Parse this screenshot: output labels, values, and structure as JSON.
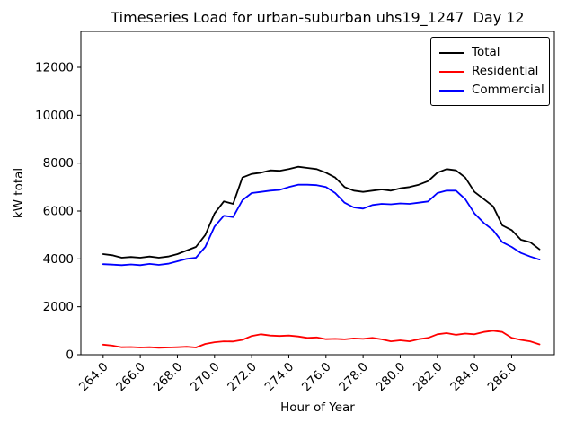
{
  "figure": {
    "title": "Timeseries Load for urban-suburban uhs19_1247  Day 12",
    "xlabel": "Hour of Year",
    "ylabel": "kW total"
  },
  "chart_data": {
    "type": "line",
    "title": "Timeseries Load for urban-suburban uhs19_1247  Day 12",
    "xlabel": "Hour of Year",
    "ylabel": "kW total",
    "xlim": [
      262.8,
      288.3
    ],
    "ylim": [
      0,
      13500
    ],
    "grid": false,
    "legend_position": "upper right",
    "x_ticks": [
      264,
      266,
      268,
      270,
      272,
      274,
      276,
      278,
      280,
      282,
      284,
      286
    ],
    "x_tick_labels": [
      "264.0",
      "266.0",
      "268.0",
      "270.0",
      "272.0",
      "274.0",
      "276.0",
      "278.0",
      "280.0",
      "282.0",
      "284.0",
      "286.0"
    ],
    "y_ticks": [
      0,
      2000,
      4000,
      6000,
      8000,
      10000,
      12000
    ],
    "y_tick_labels": [
      "0",
      "2000",
      "4000",
      "6000",
      "8000",
      "10000",
      "12000"
    ],
    "x": [
      264.0,
      264.5,
      265.0,
      265.5,
      266.0,
      266.5,
      267.0,
      267.5,
      268.0,
      268.5,
      269.0,
      269.5,
      270.0,
      270.5,
      271.0,
      271.5,
      272.0,
      272.5,
      273.0,
      273.5,
      274.0,
      274.5,
      275.0,
      275.5,
      276.0,
      276.5,
      277.0,
      277.5,
      278.0,
      278.5,
      279.0,
      279.5,
      280.0,
      280.5,
      281.0,
      281.5,
      282.0,
      282.5,
      283.0,
      283.5,
      284.0,
      284.5,
      285.0,
      285.5,
      286.0,
      286.5,
      287.0,
      287.5
    ],
    "series": [
      {
        "name": "Total",
        "color": "#000000",
        "values": [
          4200,
          4150,
          4050,
          4080,
          4050,
          4100,
          4050,
          4100,
          4200,
          4350,
          4500,
          5000,
          5900,
          6400,
          6300,
          7400,
          7550,
          7600,
          7700,
          7680,
          7750,
          7850,
          7800,
          7750,
          7600,
          7400,
          7000,
          6850,
          6800,
          6850,
          6900,
          6850,
          6950,
          7000,
          7100,
          7250,
          7600,
          7750,
          7700,
          7400,
          6800,
          6500,
          6200,
          5400,
          5200,
          4800,
          4700,
          4400
        ]
      },
      {
        "name": "Residential",
        "color": "#ff0000",
        "values": [
          420,
          380,
          310,
          320,
          300,
          310,
          290,
          300,
          310,
          330,
          300,
          450,
          520,
          560,
          550,
          620,
          780,
          850,
          800,
          780,
          800,
          760,
          700,
          720,
          650,
          660,
          640,
          680,
          660,
          700,
          640,
          560,
          600,
          560,
          650,
          700,
          850,
          900,
          830,
          880,
          850,
          950,
          1000,
          950,
          700,
          620,
          560,
          430
        ]
      },
      {
        "name": "Commercial",
        "color": "#0000ff",
        "values": [
          3780,
          3760,
          3740,
          3770,
          3740,
          3790,
          3750,
          3800,
          3900,
          4000,
          4050,
          4500,
          5350,
          5800,
          5750,
          6450,
          6750,
          6800,
          6850,
          6880,
          7000,
          7100,
          7100,
          7080,
          7000,
          6750,
          6350,
          6150,
          6100,
          6250,
          6300,
          6280,
          6320,
          6300,
          6350,
          6400,
          6750,
          6850,
          6850,
          6500,
          5900,
          5500,
          5200,
          4700,
          4500,
          4250,
          4100,
          3970
        ]
      }
    ]
  }
}
